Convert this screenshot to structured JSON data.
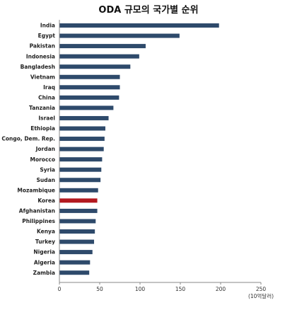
{
  "chart_data": {
    "type": "bar",
    "orientation": "horizontal",
    "title": "ODA 규모의 국가별 순위",
    "unit_label": "(10억달러)",
    "categories": [
      "India",
      "Egypt",
      "Pakistan",
      "Indonesia",
      "Bangladesh",
      "Vietnam",
      "Iraq",
      "China",
      "Tanzania",
      "Israel",
      "Ethiopia",
      "Congo, Dem. Rep.",
      "Jordan",
      "Morocco",
      "Syria",
      "Sudan",
      "Mozambique",
      "Korea",
      "Afghanistan",
      "Philippines",
      "Kenya",
      "Turkey",
      "Nigeria",
      "Algeria",
      "Zambia"
    ],
    "values": [
      198,
      149,
      107,
      99,
      88,
      75,
      75,
      74,
      67,
      61,
      57,
      56,
      55,
      53,
      52,
      51,
      48,
      47,
      47,
      45,
      44,
      43,
      41,
      38,
      37
    ],
    "highlight": "Korea",
    "colors": {
      "bar": "#2e4a6b",
      "highlight": "#b3191e",
      "axis": "#888888"
    },
    "xlim": [
      0,
      250
    ],
    "xticks": [
      0,
      50,
      100,
      150,
      200,
      250
    ],
    "grid": false,
    "legend": "none"
  }
}
